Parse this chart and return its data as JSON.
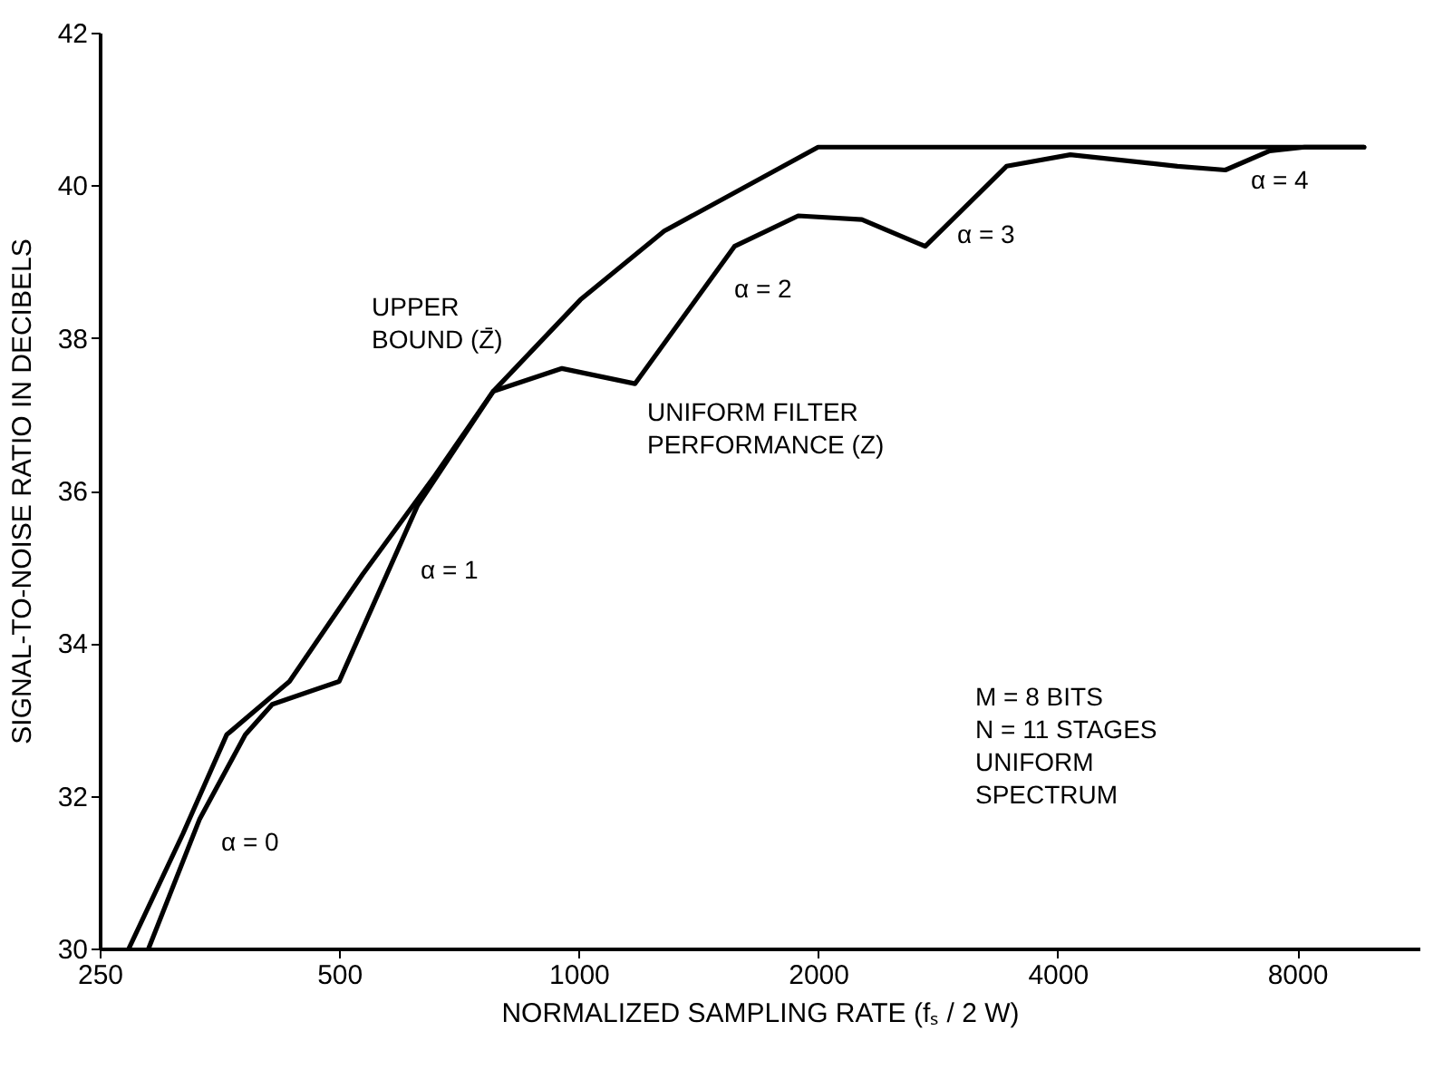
{
  "chart_data": {
    "type": "line",
    "xlabel": "NORMALIZED SAMPLING RATE (fₛ / 2 W)",
    "ylabel": "SIGNAL-TO-NOISE RATIO IN DECIBELS",
    "log": "x",
    "xlim": [
      250,
      11400
    ],
    "xticks": [
      250,
      500,
      1000,
      2000,
      4000,
      8000
    ],
    "ylim": [
      30,
      42
    ],
    "yticks": [
      30,
      32,
      34,
      36,
      38,
      40,
      42
    ],
    "grid": false,
    "line_style": "solid",
    "marker": "none",
    "series": [
      {
        "color": "#000000",
        "x": [
          272,
          318,
          361,
          433,
          535,
          660,
          781,
          1005,
          1281,
          2000,
          9710
        ],
        "values": [
          30,
          31.5,
          32.8,
          33.5,
          34.9,
          36.2,
          37.3,
          38.5,
          39.4,
          40.5,
          40.5
        ]
      },
      {
        "color": "#000000",
        "x": [
          288,
          334,
          381,
          412,
          500,
          627,
          781,
          953,
          1177,
          1570,
          1888,
          2270,
          2727,
          3450,
          4150,
          5660,
          6500,
          7390,
          8180,
          9710
        ],
        "values": [
          30,
          31.7,
          32.8,
          33.2,
          33.5,
          35.8,
          37.3,
          37.6,
          37.4,
          39.2,
          39.6,
          39.55,
          39.2,
          40.25,
          40.4,
          40.25,
          40.2,
          40.45,
          40.5,
          40.5
        ]
      }
    ],
    "annotations": [
      "UPPER BOUND (Z̄)",
      "UNIFORM FILTER PERFORMANCE (Z)",
      "α = 0",
      "α = 1",
      "α = 2",
      "α = 3",
      "α = 4",
      "M = 8 BITS\nN = 11 STAGES\nUNIFORM\nSPECTRUM"
    ]
  }
}
